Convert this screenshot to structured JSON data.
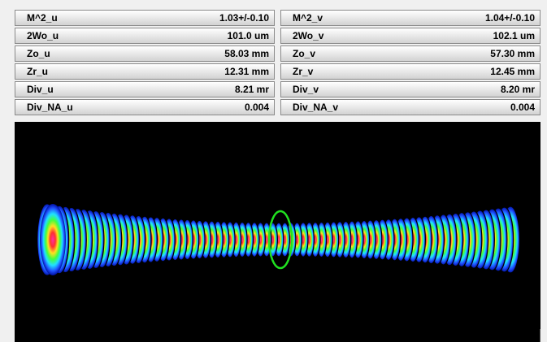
{
  "u": {
    "rows": [
      {
        "label": "M^2_u",
        "value": "1.03+/-0.10"
      },
      {
        "label": "2Wo_u",
        "value": "101.0 um"
      },
      {
        "label": "Zo_u",
        "value": "58.03 mm"
      },
      {
        "label": "Zr_u",
        "value": "12.31 mm"
      },
      {
        "label": "Div_u",
        "value": "8.21 mr"
      },
      {
        "label": "Div_NA_u",
        "value": "0.004"
      }
    ]
  },
  "v": {
    "rows": [
      {
        "label": "M^2_v",
        "value": "1.04+/-0.10"
      },
      {
        "label": "2Wo_v",
        "value": "102.1 um"
      },
      {
        "label": "Zo_v",
        "value": "57.30 mm"
      },
      {
        "label": "Zr_v",
        "value": "12.45 mm"
      },
      {
        "label": "Div_v",
        "value": "8.20 mr"
      },
      {
        "label": "Div_NA_v",
        "value": "0.004"
      }
    ]
  }
}
